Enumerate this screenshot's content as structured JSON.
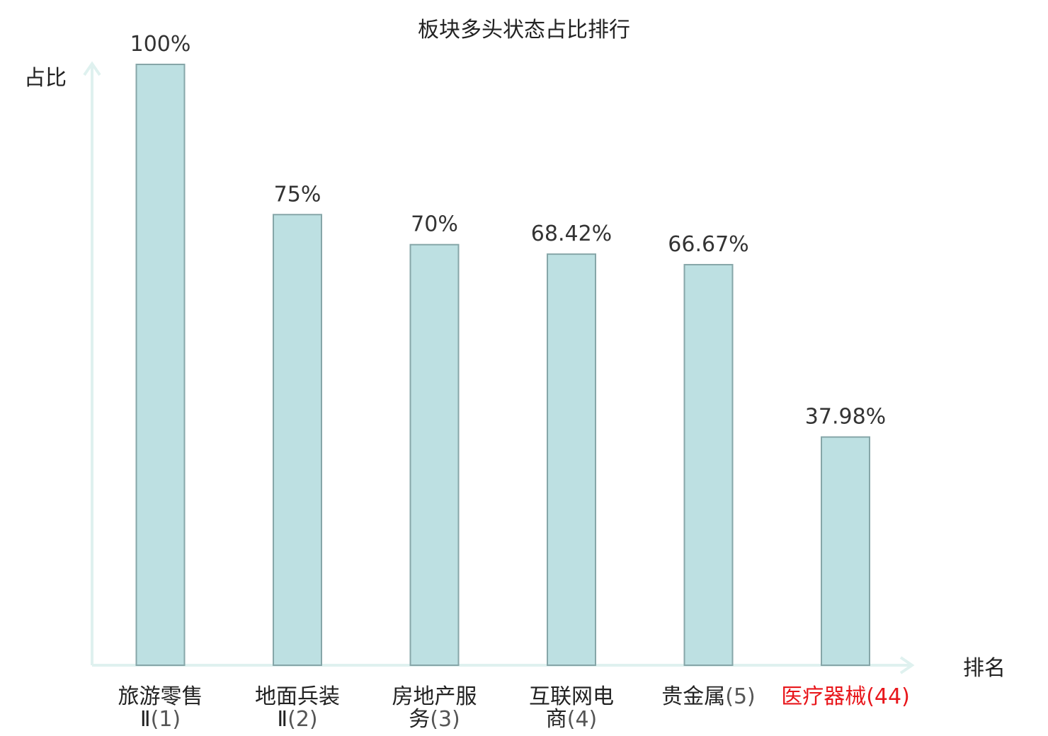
{
  "chart_data": {
    "type": "bar",
    "title": "板块多头状态占比排行",
    "ylabel": "占比",
    "xlabel": "排名",
    "ylim": [
      0,
      100
    ],
    "grid": false,
    "categories": [
      {
        "name_lines": [
          "旅游零售",
          "Ⅱ"
        ],
        "rank": "(1)",
        "highlight": false
      },
      {
        "name_lines": [
          "地面兵装",
          "Ⅱ"
        ],
        "rank": "(2)",
        "highlight": false
      },
      {
        "name_lines": [
          "房地产服",
          "务"
        ],
        "rank": "(3)",
        "highlight": false
      },
      {
        "name_lines": [
          "互联网电",
          "商"
        ],
        "rank": "(4)",
        "highlight": false
      },
      {
        "name_lines": [
          "贵金属"
        ],
        "rank": "(5)",
        "highlight": false
      },
      {
        "name_lines": [
          "医疗器械"
        ],
        "rank": "(44)",
        "highlight": true
      }
    ],
    "values": [
      100,
      75,
      70,
      68.42,
      66.67,
      37.98
    ],
    "value_labels": [
      "100%",
      "75%",
      "70%",
      "68.42%",
      "66.67%",
      "37.98%"
    ],
    "colors": {
      "bar_fill": "#bde0e2",
      "bar_stroke": "#86a6a8",
      "axis": "#dff1ef",
      "highlight_text": "#e8161b"
    }
  }
}
